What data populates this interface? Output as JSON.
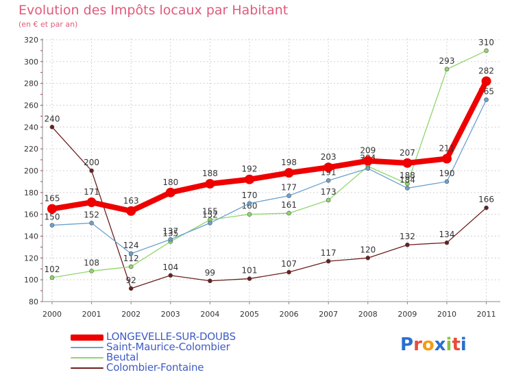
{
  "title": "Evolution des Impôts locaux par Habitant",
  "subtitle": "(en € et par an)",
  "logo": {
    "text": "Proxiti",
    "colors": [
      "#2a6fcf",
      "#e74c3c",
      "#f39c12",
      "#2a6fcf",
      "#8ac43f",
      "#e74c3c",
      "#2a6fcf"
    ]
  },
  "chart_data": {
    "type": "line",
    "title": "Evolution des Impôts locaux par Habitant",
    "subtitle": "(en € et par an)",
    "xlabel": "",
    "ylabel": "",
    "categories": [
      "2000",
      "2001",
      "2002",
      "2003",
      "2004",
      "2005",
      "2006",
      "2007",
      "2008",
      "2009",
      "2010",
      "2011"
    ],
    "ylim": [
      80,
      320
    ],
    "yticks": [
      80,
      100,
      120,
      140,
      160,
      180,
      200,
      220,
      240,
      260,
      280,
      300,
      320
    ],
    "grid": true,
    "legend_position": "bottom-left",
    "series": [
      {
        "name": "Colombier-Fontaine",
        "color": "#6b1e1e",
        "weight": "thin",
        "values": [
          240,
          200,
          92,
          104,
          99,
          101,
          107,
          117,
          120,
          132,
          134,
          166
        ]
      },
      {
        "name": "Beutal",
        "color": "#8fd66a",
        "weight": "thin",
        "values": [
          102,
          108,
          112,
          135,
          155,
          160,
          161,
          173,
          204,
          188,
          293,
          310
        ]
      },
      {
        "name": "Saint-Maurice-Colombier",
        "color": "#6ba1cf",
        "weight": "thin",
        "values": [
          150,
          152,
          124,
          137,
          152,
          170,
          177,
          191,
          202,
          184,
          190,
          265
        ]
      },
      {
        "name": "LONGEVELLE-SUR-DOUBS",
        "color": "#ee0000",
        "weight": "thick",
        "values": [
          165,
          171,
          163,
          180,
          188,
          192,
          198,
          203,
          209,
          207,
          211,
          282
        ]
      }
    ],
    "legend_order": [
      "LONGEVELLE-SUR-DOUBS",
      "Saint-Maurice-Colombier",
      "Beutal",
      "Colombier-Fontaine"
    ]
  }
}
